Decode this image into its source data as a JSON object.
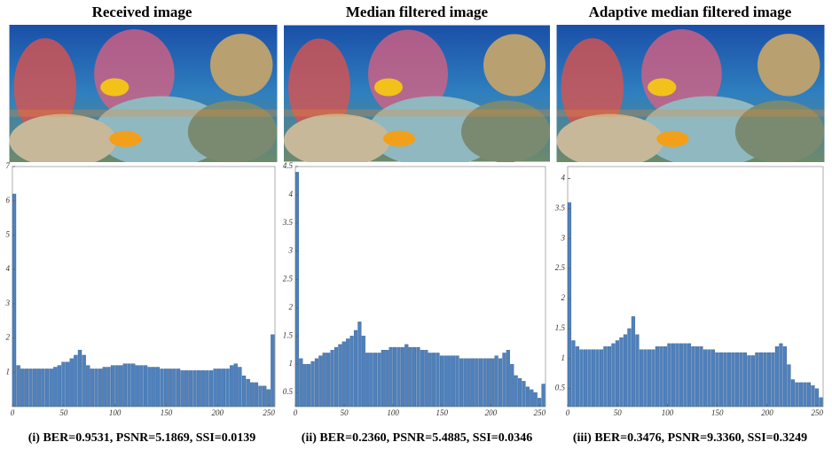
{
  "chart_data": [
    {
      "type": "histogram",
      "title": "Received image",
      "caption": "(i) BER=0.9531, PSNR=5.1869, SSI=0.0139",
      "bins": [
        0,
        4,
        8,
        12,
        16,
        20,
        24,
        28,
        32,
        36,
        40,
        44,
        48,
        52,
        56,
        60,
        64,
        68,
        72,
        76,
        80,
        84,
        88,
        92,
        96,
        100,
        104,
        108,
        112,
        116,
        120,
        124,
        128,
        132,
        136,
        140,
        144,
        148,
        152,
        156,
        160,
        164,
        168,
        172,
        176,
        180,
        184,
        188,
        192,
        196,
        200,
        204,
        208,
        212,
        216,
        220,
        224,
        228,
        232,
        236,
        240,
        244,
        248,
        252,
        256
      ],
      "values": [
        6.2,
        1.2,
        1.1,
        1.1,
        1.1,
        1.1,
        1.1,
        1.1,
        1.1,
        1.1,
        1.15,
        1.2,
        1.3,
        1.3,
        1.4,
        1.5,
        1.65,
        1.5,
        1.2,
        1.1,
        1.1,
        1.1,
        1.15,
        1.15,
        1.2,
        1.2,
        1.2,
        1.25,
        1.25,
        1.25,
        1.2,
        1.2,
        1.2,
        1.15,
        1.15,
        1.15,
        1.1,
        1.1,
        1.1,
        1.1,
        1.1,
        1.05,
        1.05,
        1.05,
        1.05,
        1.05,
        1.05,
        1.05,
        1.05,
        1.1,
        1.1,
        1.1,
        1.1,
        1.2,
        1.25,
        1.15,
        0.9,
        0.8,
        0.7,
        0.7,
        0.6,
        0.6,
        0.5,
        2.1
      ],
      "color": "#4f81bd",
      "xlim": [
        0,
        256
      ],
      "xticks": [
        0,
        50,
        100,
        150,
        200,
        250
      ],
      "ylim": [
        0,
        7
      ],
      "yticks": [
        1,
        2,
        3,
        4,
        5,
        6,
        7
      ]
    },
    {
      "type": "histogram",
      "title": "Median filtered image",
      "caption": "(ii) BER=0.2360, PSNR=5.4885, SSI=0.0346",
      "bins": [
        0,
        4,
        8,
        12,
        16,
        20,
        24,
        28,
        32,
        36,
        40,
        44,
        48,
        52,
        56,
        60,
        64,
        68,
        72,
        76,
        80,
        84,
        88,
        92,
        96,
        100,
        104,
        108,
        112,
        116,
        120,
        124,
        128,
        132,
        136,
        140,
        144,
        148,
        152,
        156,
        160,
        164,
        168,
        172,
        176,
        180,
        184,
        188,
        192,
        196,
        200,
        204,
        208,
        212,
        216,
        220,
        224,
        228,
        232,
        236,
        240,
        244,
        248,
        252,
        256
      ],
      "values": [
        4.4,
        1.1,
        1.0,
        1.0,
        1.05,
        1.1,
        1.15,
        1.2,
        1.2,
        1.25,
        1.3,
        1.35,
        1.4,
        1.45,
        1.5,
        1.6,
        1.75,
        1.5,
        1.2,
        1.2,
        1.2,
        1.2,
        1.25,
        1.25,
        1.3,
        1.3,
        1.3,
        1.3,
        1.35,
        1.3,
        1.3,
        1.3,
        1.25,
        1.25,
        1.2,
        1.2,
        1.2,
        1.15,
        1.15,
        1.15,
        1.15,
        1.15,
        1.1,
        1.1,
        1.1,
        1.1,
        1.1,
        1.1,
        1.1,
        1.1,
        1.1,
        1.15,
        1.1,
        1.2,
        1.25,
        1.0,
        0.8,
        0.75,
        0.7,
        0.6,
        0.55,
        0.5,
        0.4,
        0.65
      ],
      "color": "#4f81bd",
      "xlim": [
        0,
        256
      ],
      "xticks": [
        0,
        50,
        100,
        150,
        200,
        250
      ],
      "ylim": [
        0.25,
        4.5
      ],
      "yticks": [
        0.5,
        1,
        1.5,
        2,
        2.5,
        3,
        3.5,
        4,
        4.5
      ]
    },
    {
      "type": "histogram",
      "title": "Adaptive median filtered image",
      "caption": "(iii) BER=0.3476, PSNR=9.3360, SSI=0.3249",
      "bins": [
        0,
        4,
        8,
        12,
        16,
        20,
        24,
        28,
        32,
        36,
        40,
        44,
        48,
        52,
        56,
        60,
        64,
        68,
        72,
        76,
        80,
        84,
        88,
        92,
        96,
        100,
        104,
        108,
        112,
        116,
        120,
        124,
        128,
        132,
        136,
        140,
        144,
        148,
        152,
        156,
        160,
        164,
        168,
        172,
        176,
        180,
        184,
        188,
        192,
        196,
        200,
        204,
        208,
        212,
        216,
        220,
        224,
        228,
        232,
        236,
        240,
        244,
        248,
        252,
        256
      ],
      "values": [
        3.6,
        1.3,
        1.2,
        1.15,
        1.15,
        1.15,
        1.15,
        1.15,
        1.15,
        1.2,
        1.2,
        1.25,
        1.3,
        1.35,
        1.4,
        1.5,
        1.7,
        1.4,
        1.15,
        1.15,
        1.15,
        1.15,
        1.2,
        1.2,
        1.2,
        1.25,
        1.25,
        1.25,
        1.25,
        1.25,
        1.25,
        1.2,
        1.2,
        1.2,
        1.15,
        1.15,
        1.15,
        1.1,
        1.1,
        1.1,
        1.1,
        1.1,
        1.1,
        1.1,
        1.1,
        1.05,
        1.05,
        1.1,
        1.1,
        1.1,
        1.1,
        1.1,
        1.2,
        1.25,
        1.2,
        0.9,
        0.65,
        0.6,
        0.6,
        0.6,
        0.6,
        0.55,
        0.5,
        0.35
      ],
      "color": "#4f81bd",
      "xlim": [
        0,
        256
      ],
      "xticks": [
        0,
        50,
        100,
        150,
        200,
        250
      ],
      "ylim": [
        0.2,
        4.2
      ],
      "yticks": [
        0.5,
        1,
        1.5,
        2,
        2.5,
        3,
        3.5,
        4
      ]
    }
  ]
}
